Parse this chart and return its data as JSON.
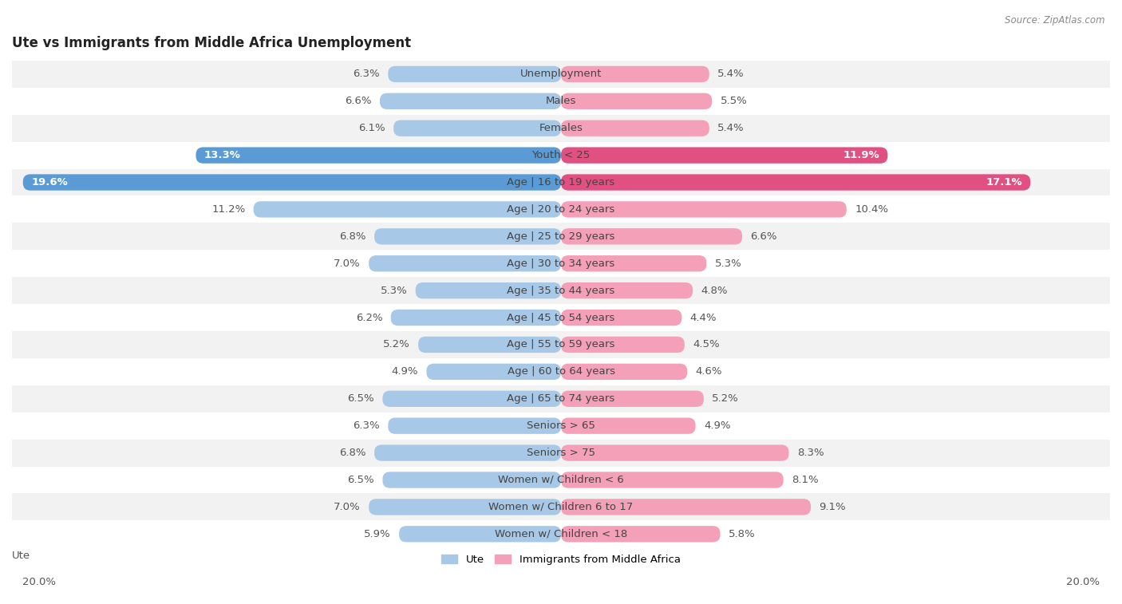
{
  "title": "Ute vs Immigrants from Middle Africa Unemployment",
  "source": "Source: ZipAtlas.com",
  "categories": [
    "Unemployment",
    "Males",
    "Females",
    "Youth < 25",
    "Age | 16 to 19 years",
    "Age | 20 to 24 years",
    "Age | 25 to 29 years",
    "Age | 30 to 34 years",
    "Age | 35 to 44 years",
    "Age | 45 to 54 years",
    "Age | 55 to 59 years",
    "Age | 60 to 64 years",
    "Age | 65 to 74 years",
    "Seniors > 65",
    "Seniors > 75",
    "Women w/ Children < 6",
    "Women w/ Children 6 to 17",
    "Women w/ Children < 18"
  ],
  "ute_values": [
    6.3,
    6.6,
    6.1,
    13.3,
    19.6,
    11.2,
    6.8,
    7.0,
    5.3,
    6.2,
    5.2,
    4.9,
    6.5,
    6.3,
    6.8,
    6.5,
    7.0,
    5.9
  ],
  "immigrants_values": [
    5.4,
    5.5,
    5.4,
    11.9,
    17.1,
    10.4,
    6.6,
    5.3,
    4.8,
    4.4,
    4.5,
    4.6,
    5.2,
    4.9,
    8.3,
    8.1,
    9.1,
    5.8
  ],
  "ute_color": "#a8c8e8",
  "immigrants_color": "#f4a0b8",
  "ute_highlight_color": "#5b9bd5",
  "immigrants_highlight_color": "#e05080",
  "highlight_rows": [
    3,
    4
  ],
  "axis_limit": 20.0,
  "bg_color": "#ffffff",
  "row_even_color": "#f2f2f2",
  "row_odd_color": "#ffffff",
  "bar_height": 0.6,
  "legend_ute_label": "Ute",
  "legend_immigrants_label": "Immigrants from Middle Africa",
  "label_fontsize": 9.5,
  "title_fontsize": 12,
  "source_fontsize": 8.5
}
